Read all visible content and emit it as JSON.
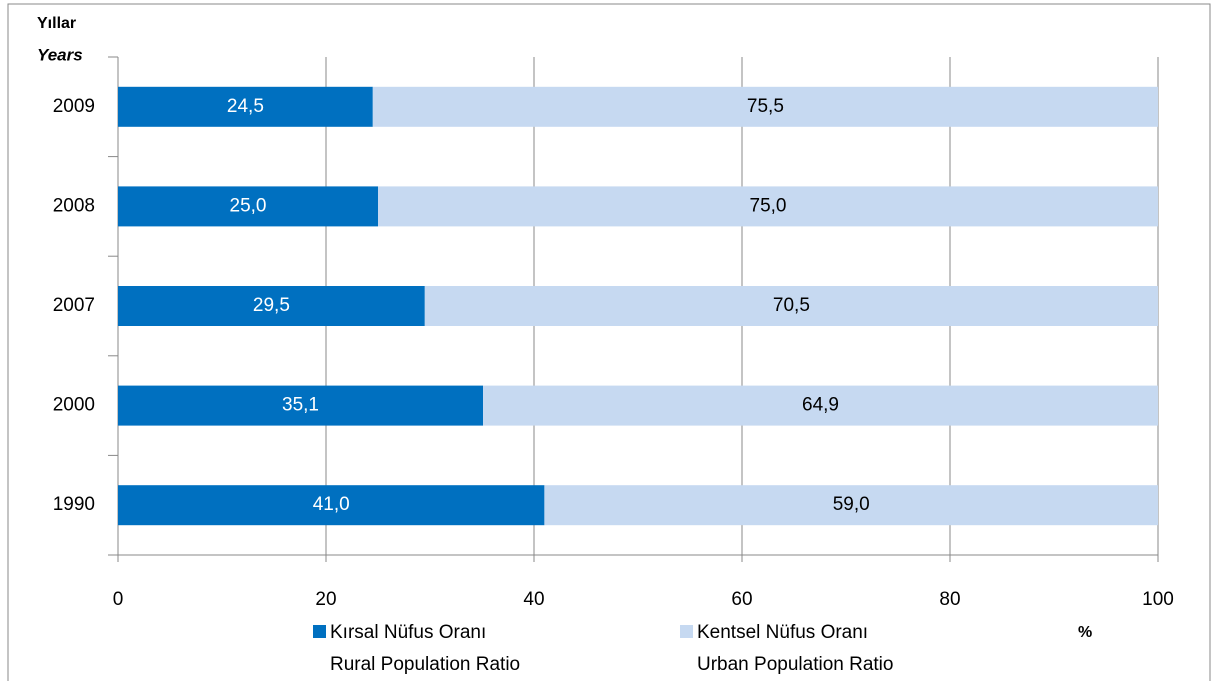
{
  "chart_data": {
    "type": "stacked_barh",
    "y_label": "Yıllar",
    "y_label_en": "Years",
    "x_label": "%",
    "categories": [
      "2009",
      "2008",
      "2007",
      "2000",
      "1990"
    ],
    "series": [
      {
        "name": "Kırsal Nüfus Oranı",
        "name_en": "Rural Population Ratio",
        "color": "#0070c0",
        "label_color": "#ffffff",
        "values": [
          24.5,
          25.0,
          29.5,
          35.1,
          41.0
        ],
        "value_labels": [
          "24,5",
          "25,0",
          "29,5",
          "35,1",
          "41,0"
        ]
      },
      {
        "name": "Kentsel Nüfus Oranı",
        "name_en": "Urban Population Ratio",
        "color": "#c6d9f1",
        "label_color": "#000000",
        "values": [
          75.5,
          75.0,
          70.5,
          64.9,
          59.0
        ],
        "value_labels": [
          "75,5",
          "75,0",
          "70,5",
          "64,9",
          "59,0"
        ]
      }
    ],
    "xlim": [
      0,
      100
    ],
    "xticks": [
      0,
      20,
      40,
      60,
      80,
      100
    ],
    "grid": true
  }
}
